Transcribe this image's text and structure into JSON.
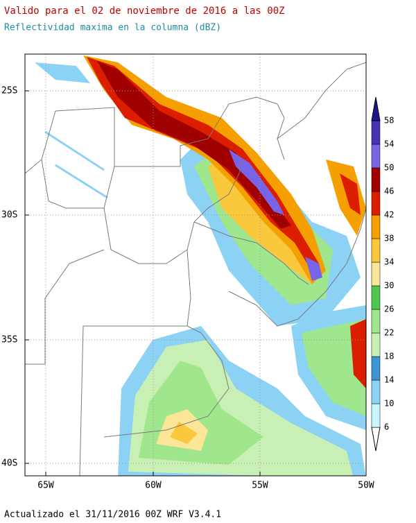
{
  "header": {
    "title": "Valido para el 02 de noviembre de 2016 a las 00Z",
    "subtitle": "Reflectividad maxima en la columna (dBZ)"
  },
  "map": {
    "longitude_labels": [
      "65W",
      "60W",
      "55W",
      "50W"
    ],
    "latitude_labels": [
      "25S",
      "30S",
      "35S",
      "40S"
    ]
  },
  "colorbar": {
    "levels": [
      6,
      10,
      14,
      18,
      22,
      26,
      30,
      34,
      38,
      42,
      46,
      50,
      54,
      58
    ],
    "colors": [
      "#ffffff",
      "#c8f5ff",
      "#8cd2f5",
      "#3c96d2",
      "#c8f0b4",
      "#a0e68c",
      "#50c850",
      "#fae696",
      "#fac83c",
      "#f5a000",
      "#dc1e00",
      "#a00000",
      "#7864e6",
      "#4632b4",
      "#1e148c"
    ]
  },
  "footer": "Actualizado el 31/11/2016 00Z WRF V3.4.1"
}
